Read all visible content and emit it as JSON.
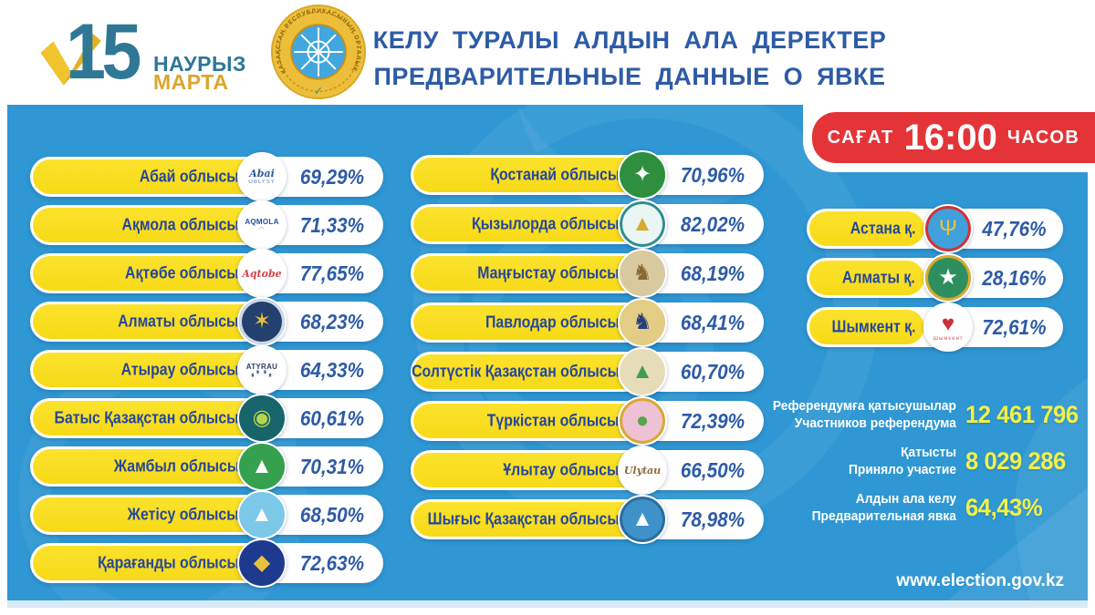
{
  "header": {
    "logo": {
      "number": "15",
      "word_kz": "НАУРЫЗ",
      "word_ru": "МАРТА"
    },
    "seal_text": "ҚАЗАҚСТАН РЕСПУБЛИКАСЫНЫҢ ОРТАЛЫҚ РЕФЕРЕНДУМ КОМИССИЯСЫ",
    "seal_check": "✓",
    "title_line1": "КЕЛУ ТУРАЛЫ АЛДЫН АЛА ДЕРЕКТЕР",
    "title_line2": "ПРЕДВАРИТЕЛЬНЫЕ ДАННЫЕ О ЯВКЕ"
  },
  "time_badge": {
    "prefix": "САҒАТ",
    "time": "16:00",
    "suffix": "ЧАСОВ"
  },
  "regions_col1": [
    {
      "name": "Абай облысы",
      "value": "69,29%",
      "emblem": {
        "icon": "abai-oblysy-emblem",
        "bg": "#ffffff",
        "glyph": "Abai",
        "color": "#2d5aa0",
        "kind": "word",
        "sub": "OBLYSY"
      }
    },
    {
      "name": "Ақмола облысы",
      "value": "71,33%",
      "emblem": {
        "icon": "aqmola-oblysy-emblem",
        "bg": "#ffffff",
        "glyph": "AQMOLA",
        "color": "#1f4fa0",
        "kind": "word-small",
        "sub": "◠"
      }
    },
    {
      "name": "Ақтөбе облысы",
      "value": "77,65%",
      "emblem": {
        "icon": "aqtobe-oblysy-emblem",
        "bg": "#ffffff",
        "glyph": "Aqtobe",
        "color": "#d8414a",
        "kind": "word"
      }
    },
    {
      "name": "Алматы облысы",
      "value": "68,23%",
      "emblem": {
        "icon": "almaty-oblysy-emblem",
        "bg": "#24406e",
        "glyph": "✶",
        "color": "#e8c33c",
        "ring": "#cdd9ea"
      }
    },
    {
      "name": "Атырау облысы",
      "value": "64,33%",
      "emblem": {
        "icon": "atyrau-oblysy-emblem",
        "bg": "#ffffff",
        "glyph": "ATYRAU",
        "color": "#2a3f66",
        "kind": "word-small",
        "sub": "▖▘▝▗"
      }
    },
    {
      "name": "Батыс Қазақстан облысы",
      "value": "60,61%",
      "emblem": {
        "icon": "batys-qazaqstan-oblysy-emblem",
        "bg": "#17646b",
        "glyph": "◉",
        "color": "#b8d44a"
      }
    },
    {
      "name": "Жамбыл облысы",
      "value": "70,31%",
      "emblem": {
        "icon": "zhambyl-oblysy-emblem",
        "bg": "#35a14f",
        "glyph": "▲",
        "color": "#ffffff"
      }
    },
    {
      "name": "Жетісу облысы",
      "value": "68,50%",
      "emblem": {
        "icon": "zhetisu-oblysy-emblem",
        "bg": "#7cc8e8",
        "glyph": "▲",
        "color": "#ffffff"
      }
    },
    {
      "name": "Қарағанды облысы",
      "value": "72,63%",
      "emblem": {
        "icon": "qaragandy-oblysy-emblem",
        "bg": "#1d3a8f",
        "glyph": "◆",
        "color": "#e8c33c"
      }
    }
  ],
  "regions_col2": [
    {
      "name": "Қостанай облысы",
      "value": "70,96%",
      "emblem": {
        "icon": "qostanai-oblysy-emblem",
        "bg": "#2e8f3e",
        "glyph": "✦",
        "color": "#ffffff"
      }
    },
    {
      "name": "Қызылорда облысы",
      "value": "82,02%",
      "emblem": {
        "icon": "qyzylorda-oblysy-emblem",
        "bg": "#e9f6f3",
        "glyph": "▲",
        "color": "#d9a92e",
        "ring": "#2e8f8f"
      }
    },
    {
      "name": "Маңғыстау облысы",
      "value": "68,19%",
      "emblem": {
        "icon": "mangystau-oblysy-emblem",
        "bg": "#d9c99e",
        "glyph": "♞",
        "color": "#8a6a34"
      }
    },
    {
      "name": "Павлодар облысы",
      "value": "68,41%",
      "emblem": {
        "icon": "pavlodar-oblysy-emblem",
        "bg": "#e3cd85",
        "glyph": "♞",
        "color": "#23407a"
      }
    },
    {
      "name": "Солтүстік Қазақстан облысы",
      "value": "60,70%",
      "emblem": {
        "icon": "soltustik-qazaqstan-oblysy-emblem",
        "bg": "#e7dcba",
        "glyph": "▲",
        "color": "#3f9e4e"
      }
    },
    {
      "name": "Түркістан облысы",
      "value": "72,39%",
      "emblem": {
        "icon": "turkistan-oblysy-emblem",
        "bg": "#efc1d4",
        "glyph": "●",
        "color": "#58a44a",
        "ring": "#d9a92e"
      }
    },
    {
      "name": "Ұлытау облысы",
      "value": "66,50%",
      "emblem": {
        "icon": "ulytau-oblysy-emblem",
        "bg": "#ffffff",
        "glyph": "Ulytau",
        "color": "#8a6a34",
        "kind": "word"
      }
    },
    {
      "name": "Шығыс Қазақстан облысы",
      "value": "78,98%",
      "emblem": {
        "icon": "shygys-qazaqstan-oblysy-emblem",
        "bg": "#3f92c9",
        "glyph": "▲",
        "color": "#ffffff",
        "ring": "#2a6da0"
      }
    }
  ],
  "cities": [
    {
      "name": "Астана қ.",
      "value": "47,76%",
      "emblem": {
        "icon": "astana-city-emblem",
        "bg": "#3fa0dc",
        "glyph": "Ψ",
        "color": "#e8c33c",
        "ring": "#d83030"
      }
    },
    {
      "name": "Алматы қ.",
      "value": "28,16%",
      "emblem": {
        "icon": "almaty-city-emblem",
        "bg": "#2e8f5e",
        "glyph": "★",
        "color": "#ffffff",
        "ring": "#d9a92e"
      }
    },
    {
      "name": "Шымкент қ.",
      "value": "72,61%",
      "emblem": {
        "icon": "shymkent-city-emblem",
        "bg": "#ffffff",
        "glyph": "♥",
        "color": "#c9303a",
        "sub": "Шымкент"
      }
    }
  ],
  "stats": [
    {
      "label_kz": "Референдумға қатысушылар",
      "label_ru": "Участников референдума",
      "value": "12 461 796"
    },
    {
      "label_kz": "Қатысты",
      "label_ru": "Приняло участие",
      "value": "8 029 286"
    },
    {
      "label_kz": "Алдын ала келу",
      "label_ru": "Предварительная явка",
      "value": "64,43%"
    }
  ],
  "footer": {
    "url": "www.election.gov.kz"
  },
  "colors": {
    "background_blue": "#2f97d3",
    "pill_yellow": "#f7da18",
    "badge_red": "#e43438",
    "title_blue": "#2d5ba6",
    "region_text": "#24479d",
    "stat_value_yellow": "#f2f148"
  },
  "chart_data": {
    "type": "table",
    "title": "Келу туралы алдын ала деректер / Предварительные данные о явке — Сағат 16:00 часов",
    "unit": "%",
    "categories": [
      "Абай облысы",
      "Ақмола облысы",
      "Ақтөбе облысы",
      "Алматы облысы",
      "Атырау облысы",
      "Батыс Қазақстан облысы",
      "Жамбыл облысы",
      "Жетісу облысы",
      "Қарағанды облысы",
      "Қостанай облысы",
      "Қызылорда облысы",
      "Маңғыстау облысы",
      "Павлодар облысы",
      "Солтүстік Қазақстан облысы",
      "Түркістан облысы",
      "Ұлытау облысы",
      "Шығыс Қазақстан облысы",
      "Астана қ.",
      "Алматы қ.",
      "Шымкент қ."
    ],
    "values": [
      69.29,
      71.33,
      77.65,
      68.23,
      64.33,
      60.61,
      70.31,
      68.5,
      72.63,
      70.96,
      82.02,
      68.19,
      68.41,
      60.7,
      72.39,
      66.5,
      78.98,
      47.76,
      28.16,
      72.61
    ],
    "summary": {
      "participants_total": 12461796,
      "took_part": 8029286,
      "preliminary_turnout_pct": 64.43
    }
  }
}
